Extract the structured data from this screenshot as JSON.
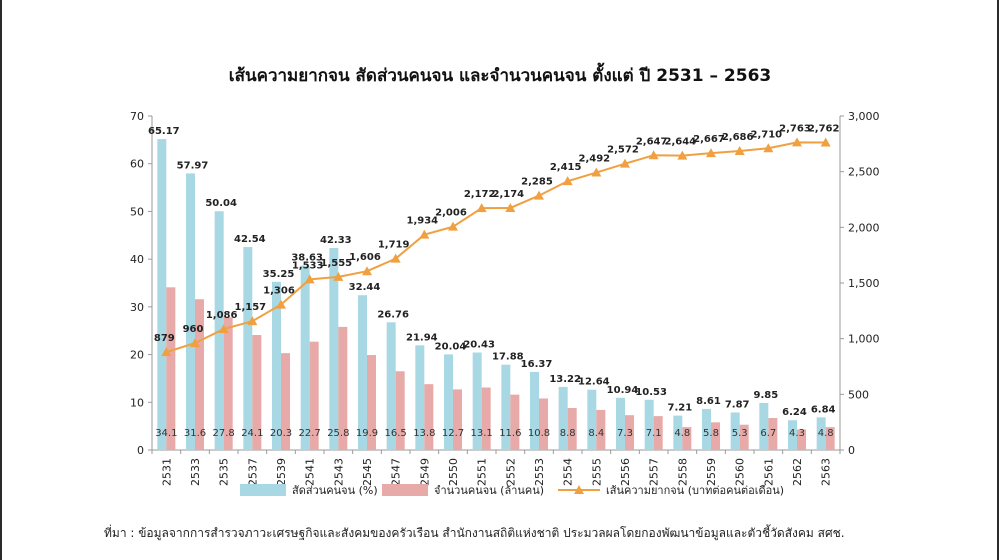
{
  "chart_data": {
    "type": "bar+line",
    "title": "เส้นความยากจน สัดส่วนคนจน และจำนวนคนจน ตั้งแต่ ปี 2531 – 2563",
    "categories": [
      "2531",
      "2533",
      "2535",
      "2537",
      "2539",
      "2541",
      "2543",
      "2545",
      "2547",
      "2549",
      "2550",
      "2551",
      "2552",
      "2553",
      "2554",
      "2555",
      "2556",
      "2557",
      "2558",
      "2559",
      "2560",
      "2561",
      "2562",
      "2563"
    ],
    "left_axis": {
      "ylim": [
        0,
        70
      ],
      "ticks": [
        "0",
        "10",
        "20",
        "30",
        "40",
        "50",
        "60",
        "70"
      ]
    },
    "right_axis": {
      "ylim": [
        0,
        3000
      ],
      "ticks": [
        "0",
        "500",
        "1,000",
        "1,500",
        "2,000",
        "2,500",
        "3,000"
      ]
    },
    "series": [
      {
        "name": "สัดส่วนคนจน (%)",
        "type": "bar",
        "axis": "left",
        "color": "#a8d8e4",
        "values": [
          65.17,
          57.97,
          50.04,
          42.54,
          35.25,
          38.63,
          42.33,
          32.44,
          26.76,
          21.94,
          20.04,
          20.43,
          17.88,
          16.37,
          13.22,
          12.64,
          10.94,
          10.53,
          7.21,
          8.61,
          7.87,
          9.85,
          6.24,
          6.84
        ],
        "labels": [
          "65.17",
          "57.97",
          "50.04",
          "42.54",
          "35.25",
          "38.63",
          "42.33",
          "32.44",
          "26.76",
          "21.94",
          "20.04",
          "20.43",
          "17.88",
          "16.37",
          "13.22",
          "12.64",
          "10.94",
          "10.53",
          "7.21",
          "8.61",
          "7.87",
          "9.85",
          "6.24",
          "6.84"
        ]
      },
      {
        "name": "จำนวนคนจน (ล้านคน)",
        "type": "bar",
        "axis": "left",
        "color": "#e8aaa8",
        "values": [
          34.1,
          31.6,
          27.8,
          24.1,
          20.3,
          22.7,
          25.8,
          19.9,
          16.5,
          13.8,
          12.7,
          13.1,
          11.6,
          10.8,
          8.8,
          8.4,
          7.3,
          7.1,
          4.8,
          5.8,
          5.3,
          6.7,
          4.3,
          4.8
        ],
        "labels": [
          "34.1",
          "31.6",
          "27.8",
          "24.1",
          "20.3",
          "22.7",
          "25.8",
          "19.9",
          "16.5",
          "13.8",
          "12.7",
          "13.1",
          "11.6",
          "10.8",
          "8.8",
          "8.4",
          "7.3",
          "7.1",
          "4.8",
          "5.8",
          "5.3",
          "6.7",
          "4.3",
          "4.8"
        ]
      },
      {
        "name": "เส้นความยากจน (บาทต่อคนต่อเดือน)",
        "type": "line",
        "axis": "right",
        "color": "#f0a040",
        "marker": "triangle",
        "values": [
          879,
          960,
          1086,
          1157,
          1306,
          1533,
          1555,
          1606,
          1719,
          1934,
          2006,
          2172,
          2174,
          2285,
          2415,
          2492,
          2572,
          2647,
          2644,
          2667,
          2686,
          2710,
          2763,
          2762
        ],
        "labels": [
          "879",
          "960",
          "1,086",
          "1,157",
          "1,306",
          "1,533",
          "1,555",
          "1,606",
          "1,719",
          "1,934",
          "2,006",
          "2,172",
          "2,174",
          "2,285",
          "2,415",
          "2,492",
          "2,572",
          "2,647",
          "2,644",
          "2,667",
          "2,686",
          "2,710",
          "2,763",
          "2,762"
        ]
      }
    ],
    "legend_position": "bottom"
  },
  "source_note": "ที่มา : ข้อมูลจากการสำรวจภาวะเศรษฐกิจและสังคมของครัวเรือน สำนักงานสถิติแห่งชาติ ประมวลผลโดยกองพัฒนาข้อมูลและตัวชี้วัดสังคม สศช."
}
